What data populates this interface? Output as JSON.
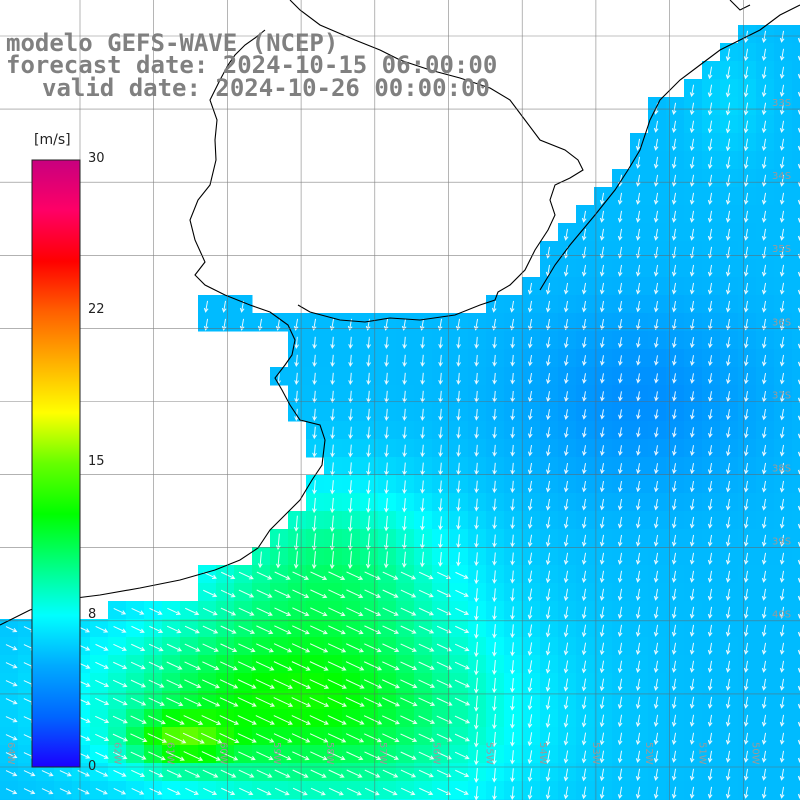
{
  "title": {
    "line1": "modelo GEFS-WAVE (NCEP)",
    "line2": "forecast date: 2024-10-15 06:00:00",
    "line3": "valid date: 2024-10-26 00:00:00"
  },
  "colorbar": {
    "unit": "[m/s]",
    "ticks": [
      "30",
      "22",
      "15",
      "8",
      "0"
    ],
    "tick_values": [
      30,
      22,
      15,
      8,
      0
    ],
    "colors": [
      "#1a00ff",
      "#0066ff",
      "#00aaff",
      "#00ffff",
      "#00ff80",
      "#00ff00",
      "#66ff00",
      "#ffff00",
      "#ffb000",
      "#ff6000",
      "#ff0000",
      "#ff0066",
      "#c8007f"
    ]
  },
  "map": {
    "lat_labels": [
      "33S",
      "34S",
      "35S",
      "36S",
      "37S",
      "38S",
      "39S",
      "40S"
    ],
    "lon_labels": [
      "64W",
      "63W",
      "62W",
      "61W",
      "60W",
      "59W",
      "58W",
      "57W",
      "56W",
      "55W",
      "54W",
      "53W",
      "52W",
      "51W",
      "50W"
    ]
  }
}
